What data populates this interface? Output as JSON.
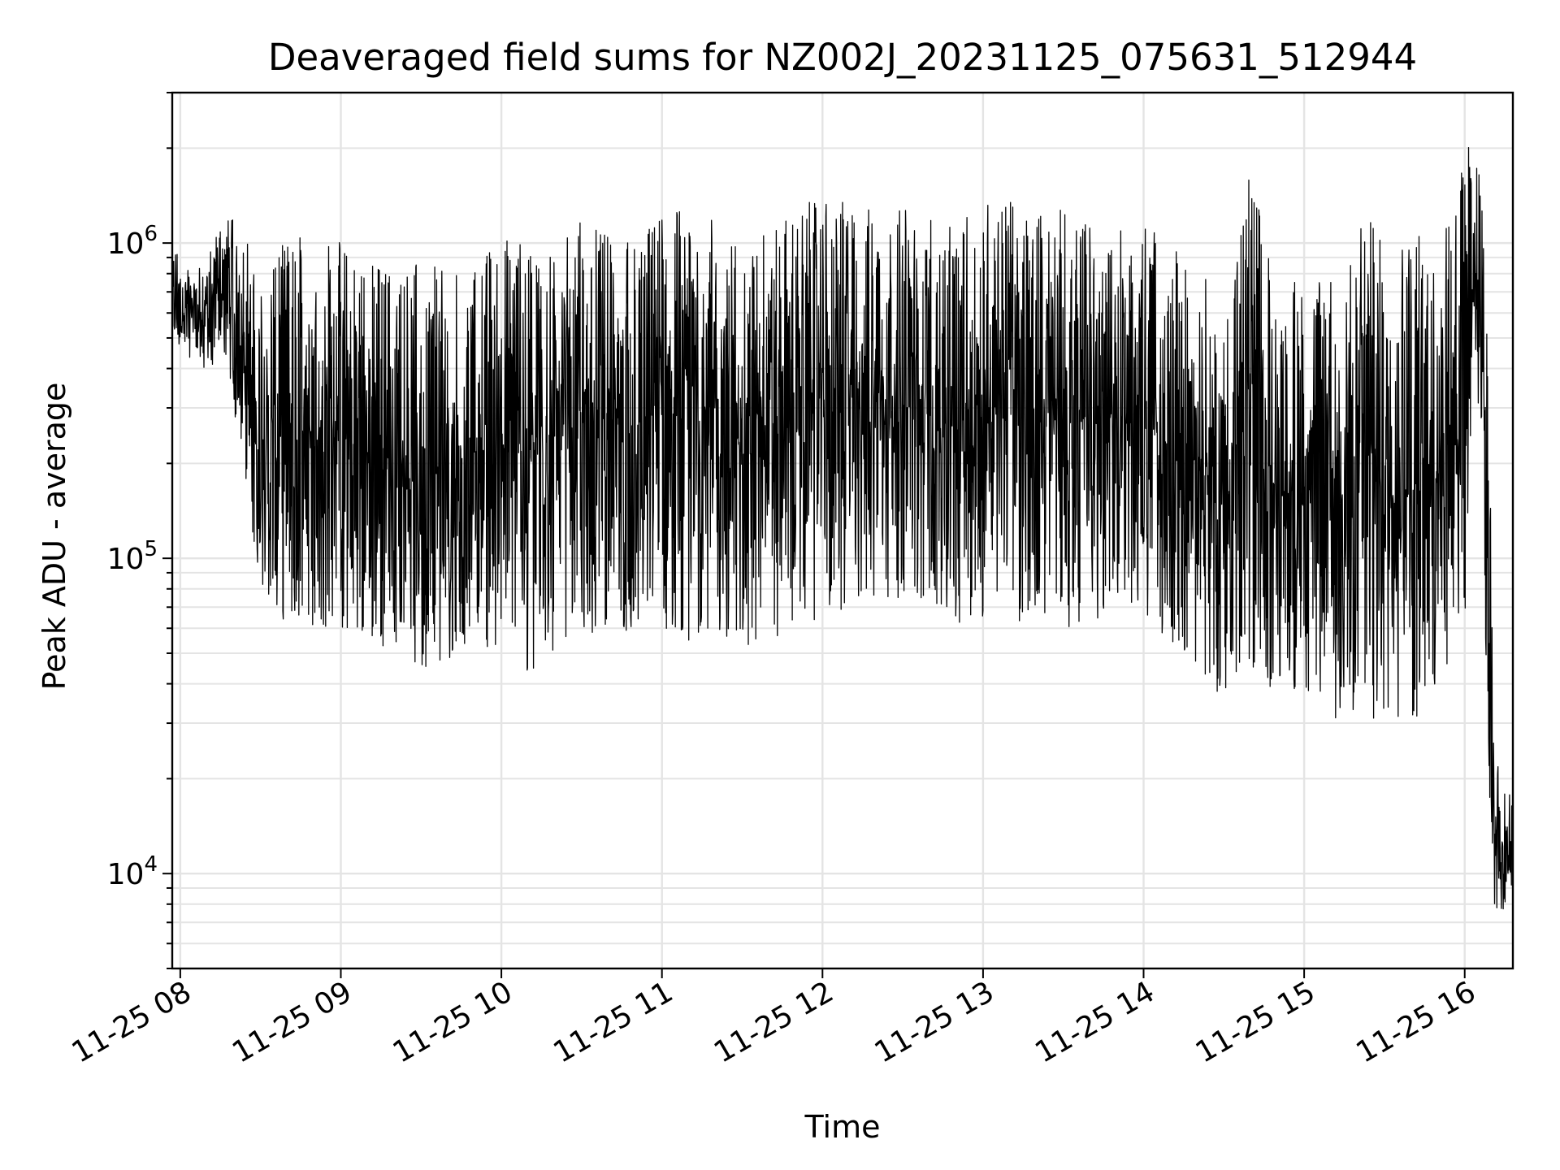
{
  "chart_data": {
    "type": "line",
    "title": "Deaveraged field sums for NZ002J_20231125_075631_512944",
    "xlabel": "Time",
    "ylabel": "Peak ADU - average",
    "y_scale": "log",
    "ylim": [
      5000,
      3000000
    ],
    "xlim": [
      "2023-11-25 07:57",
      "2023-11-25 16:18"
    ],
    "x_ticks": [
      "2023-11-25 08:00",
      "2023-11-25 09:00",
      "2023-11-25 10:00",
      "2023-11-25 11:00",
      "2023-11-25 12:00",
      "2023-11-25 13:00",
      "2023-11-25 14:00",
      "2023-11-25 15:00",
      "2023-11-25 16:00"
    ],
    "x_tick_labels": [
      "11-25 08",
      "11-25 09",
      "11-25 10",
      "11-25 11",
      "11-25 12",
      "11-25 13",
      "11-25 14",
      "11-25 15",
      "11-25 16"
    ],
    "y_ticks": [
      10000,
      100000,
      1000000
    ],
    "y_tick_labels": [
      {
        "base": "10",
        "exp": "4"
      },
      {
        "base": "10",
        "exp": "5"
      },
      {
        "base": "10",
        "exp": "6"
      }
    ],
    "grid": true,
    "series": [
      {
        "color": "#000000",
        "x": [
          "2023-11-25 07:57",
          "2023-11-25 08:05",
          "2023-11-25 08:10",
          "2023-11-25 08:15",
          "2023-11-25 08:20",
          "2023-11-25 08:25",
          "2023-11-25 08:30",
          "2023-11-25 08:35",
          "2023-11-25 08:40",
          "2023-11-25 08:45",
          "2023-11-25 08:50",
          "2023-11-25 08:55",
          "2023-11-25 09:00",
          "2023-11-25 09:10",
          "2023-11-25 09:20",
          "2023-11-25 09:30",
          "2023-11-25 09:40",
          "2023-11-25 09:50",
          "2023-11-25 10:00",
          "2023-11-25 10:05",
          "2023-11-25 10:10",
          "2023-11-25 10:20",
          "2023-11-25 10:30",
          "2023-11-25 10:40",
          "2023-11-25 10:50",
          "2023-11-25 11:00",
          "2023-11-25 11:10",
          "2023-11-25 11:20",
          "2023-11-25 11:30",
          "2023-11-25 11:40",
          "2023-11-25 11:50",
          "2023-11-25 12:00",
          "2023-11-25 12:10",
          "2023-11-25 12:20",
          "2023-11-25 12:30",
          "2023-11-25 12:40",
          "2023-11-25 12:50",
          "2023-11-25 13:00",
          "2023-11-25 13:10",
          "2023-11-25 13:20",
          "2023-11-25 13:30",
          "2023-11-25 13:40",
          "2023-11-25 13:50",
          "2023-11-25 14:00",
          "2023-11-25 14:10",
          "2023-11-25 14:20",
          "2023-11-25 14:30",
          "2023-11-25 14:40",
          "2023-11-25 14:50",
          "2023-11-25 15:00",
          "2023-11-25 15:10",
          "2023-11-25 15:20",
          "2023-11-25 15:30",
          "2023-11-25 15:40",
          "2023-11-25 15:50",
          "2023-11-25 16:00",
          "2023-11-25 16:03",
          "2023-11-25 16:06",
          "2023-11-25 16:09",
          "2023-11-25 16:11",
          "2023-11-25 16:13",
          "2023-11-25 16:15",
          "2023-11-25 16:18"
        ],
        "y_low": [
          500000,
          420000,
          380000,
          450000,
          300000,
          150000,
          80000,
          60000,
          60000,
          60000,
          50000,
          60000,
          55000,
          52000,
          48000,
          45000,
          47000,
          50000,
          48000,
          45000,
          43000,
          48000,
          55000,
          60000,
          58000,
          60000,
          55000,
          58000,
          50000,
          55000,
          60000,
          65000,
          70000,
          70000,
          75000,
          70000,
          60000,
          60000,
          65000,
          60000,
          58000,
          60000,
          70000,
          60000,
          55000,
          45000,
          35000,
          40000,
          38000,
          35000,
          30000,
          32000,
          28000,
          25000,
          40000,
          60000,
          400000,
          250000,
          20000,
          8000,
          7000,
          8000,
          9000
        ],
        "y_high": [
          1000000,
          800000,
          900000,
          1200000,
          1200000,
          1100000,
          700000,
          1000000,
          1000000,
          1100000,
          1100000,
          1100000,
          1000000,
          900000,
          850000,
          900000,
          800000,
          850000,
          1100000,
          1000000,
          1100000,
          900000,
          1300000,
          1100000,
          1000000,
          1300000,
          1400000,
          1300000,
          1000000,
          1200000,
          1300000,
          1400000,
          1400000,
          1300000,
          1300000,
          1200000,
          1100000,
          1400000,
          1400000,
          1300000,
          1300000,
          1200000,
          1100000,
          1200000,
          1000000,
          900000,
          600000,
          1800000,
          700000,
          800000,
          900000,
          1400000,
          1000000,
          1100000,
          1300000,
          2300000,
          2000000,
          1800000,
          400000,
          25000,
          22000,
          20000,
          20000
        ]
      }
    ]
  }
}
